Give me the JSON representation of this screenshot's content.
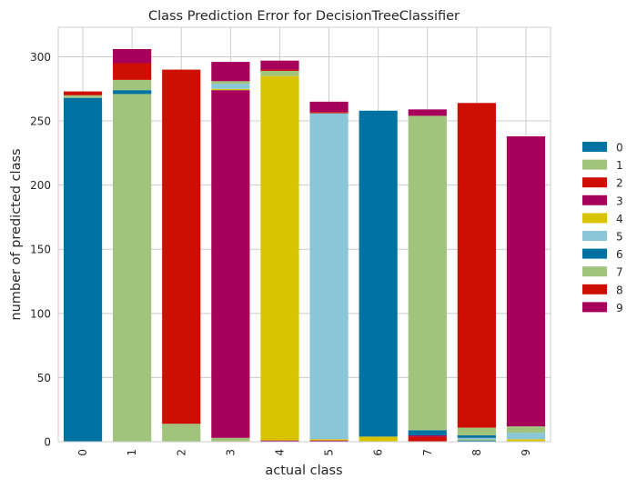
{
  "chart_data": {
    "type": "bar",
    "stacked": true,
    "title": "Class Prediction Error for DecisionTreeClassifier",
    "xlabel": "actual class",
    "ylabel": "number of predicted class",
    "categories": [
      "0",
      "1",
      "2",
      "3",
      "4",
      "5",
      "6",
      "7",
      "8",
      "9"
    ],
    "ylim": [
      0,
      323
    ],
    "yticks": [
      0,
      50,
      100,
      150,
      200,
      250,
      300
    ],
    "grid": true,
    "legend_position": "right",
    "series": [
      {
        "name": "0",
        "color": "#0072a2",
        "values": [
          268,
          0,
          0,
          0,
          0,
          0,
          0,
          0,
          1,
          0
        ]
      },
      {
        "name": "1",
        "color": "#a0c47c",
        "values": [
          1,
          271,
          14,
          3,
          0,
          0,
          0,
          0,
          1,
          0
        ]
      },
      {
        "name": "2",
        "color": "#cc0f00",
        "values": [
          0,
          0,
          276,
          0,
          0,
          0,
          0,
          4,
          0,
          0
        ]
      },
      {
        "name": "3",
        "color": "#a7005b",
        "values": [
          0,
          0,
          0,
          271,
          1,
          1,
          0,
          1,
          0,
          0
        ]
      },
      {
        "name": "4",
        "color": "#d8c400",
        "values": [
          0,
          0,
          0,
          1,
          284,
          1,
          4,
          0,
          0,
          2
        ]
      },
      {
        "name": "5",
        "color": "#89c6d8",
        "values": [
          0,
          0,
          0,
          4,
          0,
          254,
          0,
          0,
          1,
          5
        ]
      },
      {
        "name": "6",
        "color": "#0072a2",
        "values": [
          0,
          3,
          0,
          0,
          0,
          0,
          254,
          4,
          2,
          0
        ]
      },
      {
        "name": "7",
        "color": "#a0c47c",
        "values": [
          1,
          8,
          0,
          2,
          4,
          0,
          0,
          245,
          6,
          5
        ]
      },
      {
        "name": "8",
        "color": "#cc0f00",
        "values": [
          3,
          13,
          0,
          0,
          1,
          1,
          0,
          0,
          253,
          0
        ]
      },
      {
        "name": "9",
        "color": "#a7005b",
        "values": [
          0,
          11,
          0,
          15,
          7,
          8,
          0,
          5,
          0,
          226
        ]
      }
    ]
  }
}
